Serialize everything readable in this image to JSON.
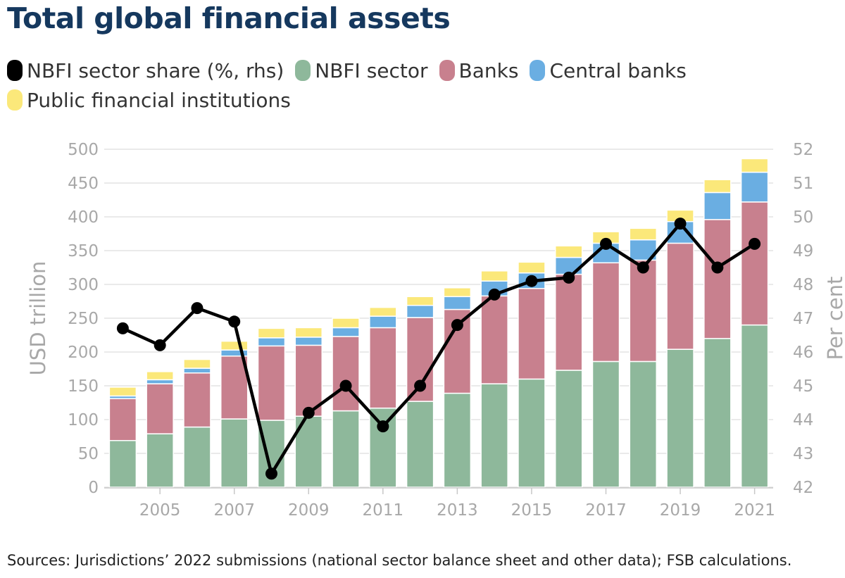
{
  "title": "Total global financial assets",
  "source": "Sources: Jurisdictions’ 2022 submissions (national sector balance sheet and other data); FSB calculations.",
  "colors": {
    "nbfi_share": "#000000",
    "nbfi_sector": "#8eb89b",
    "banks": "#c8808e",
    "central_banks": "#6aaee2",
    "public_fi": "#fbe87a",
    "grid": "#e3e3e3",
    "axis_text": "#a8a8a8"
  },
  "chart_data": {
    "type": "bar",
    "stacked": true,
    "title": "Total global financial assets",
    "x": [
      2004,
      2005,
      2006,
      2007,
      2008,
      2009,
      2010,
      2011,
      2012,
      2013,
      2014,
      2015,
      2016,
      2017,
      2018,
      2019,
      2020,
      2021
    ],
    "x_tick_labels": [
      "2005",
      "2007",
      "2009",
      "2011",
      "2013",
      "2015",
      "2017",
      "2019",
      "2021"
    ],
    "ylabel": "USD trillion",
    "ylim": [
      0,
      500
    ],
    "y_ticks": [
      0,
      50,
      100,
      150,
      200,
      250,
      300,
      350,
      400,
      450,
      500
    ],
    "y2label": "Per cent",
    "y2lim": [
      42,
      52
    ],
    "y2_ticks": [
      42,
      43,
      44,
      45,
      46,
      47,
      48,
      49,
      50,
      51,
      52
    ],
    "grid": true,
    "legend_position": "top",
    "series": [
      {
        "name": "NBFI sector share (%, rhs)",
        "type": "line",
        "axis": "right",
        "color": "#000000",
        "values": [
          46.7,
          46.2,
          47.3,
          46.9,
          42.4,
          44.2,
          45.0,
          43.8,
          45.0,
          46.8,
          47.7,
          48.1,
          48.2,
          49.2,
          48.5,
          49.8,
          48.5,
          49.2
        ]
      },
      {
        "name": "NBFI sector",
        "type": "bar",
        "axis": "left",
        "color": "#8eb89b",
        "values": [
          69,
          79,
          89,
          101,
          99,
          105,
          113,
          117,
          127,
          139,
          153,
          160,
          173,
          186,
          186,
          204,
          220,
          240
        ]
      },
      {
        "name": "Banks",
        "type": "bar",
        "axis": "left",
        "color": "#c8808e",
        "values": [
          62,
          74,
          80,
          93,
          110,
          105,
          110,
          119,
          124,
          124,
          130,
          134,
          142,
          146,
          150,
          157,
          176,
          182
        ]
      },
      {
        "name": "Central banks",
        "type": "bar",
        "axis": "left",
        "color": "#6aaee2",
        "values": [
          4,
          6,
          7,
          9,
          12,
          12,
          13,
          17,
          18,
          19,
          22,
          23,
          25,
          29,
          30,
          32,
          40,
          44
        ]
      },
      {
        "name": "Public financial institutions",
        "type": "bar",
        "axis": "left",
        "color": "#fbe87a",
        "values": [
          13,
          12,
          13,
          13,
          14,
          14,
          14,
          13,
          13,
          13,
          15,
          16,
          17,
          17,
          17,
          17,
          19,
          20
        ]
      }
    ]
  }
}
